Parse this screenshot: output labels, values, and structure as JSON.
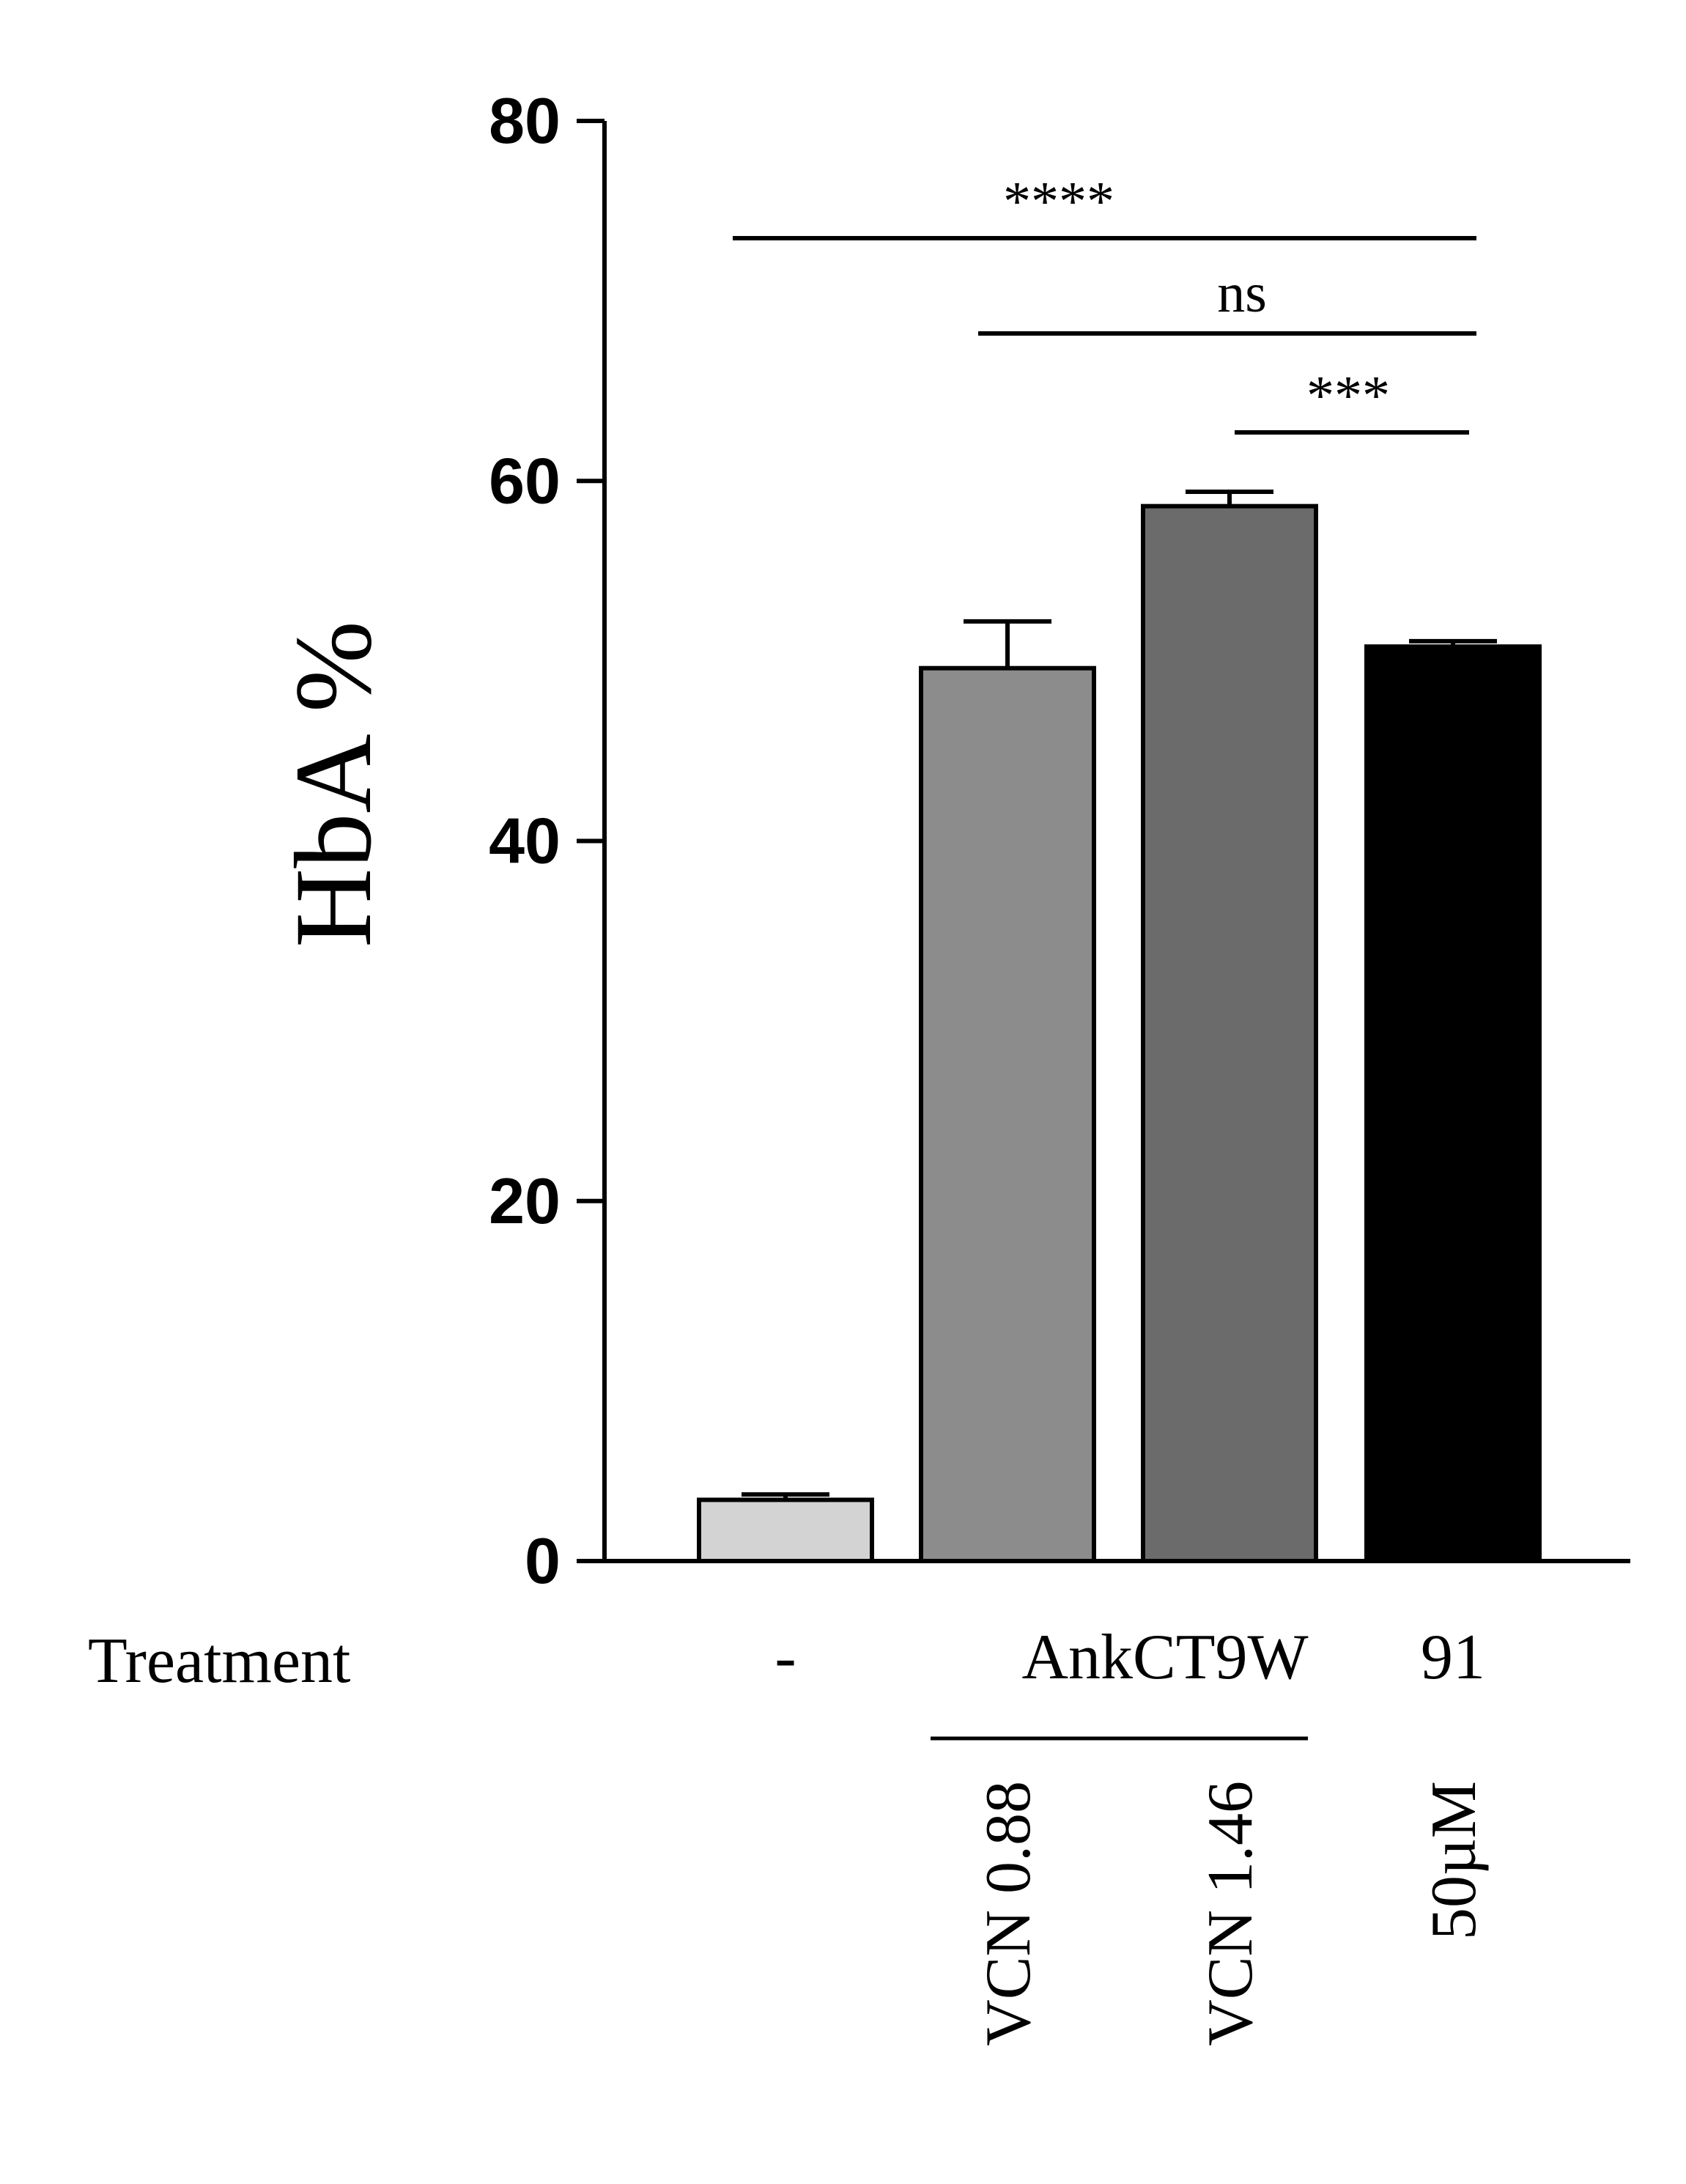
{
  "chart_data": {
    "type": "bar",
    "ylabel": "HbA %",
    "xlabel": "Treatment",
    "ylim": [
      0,
      80
    ],
    "yticks": [
      0,
      20,
      40,
      60,
      80
    ],
    "grid": false,
    "categories": [
      "-",
      "VCN 0.88",
      "VCN 1.46",
      "50µM"
    ],
    "group_labels": {
      "AnkCT9W": [
        "VCN 0.88",
        "VCN 1.46"
      ],
      "91": [
        "50µM"
      ]
    },
    "treatment_labels": [
      "-",
      "AnkCT9W",
      "91"
    ],
    "values": [
      3.4,
      49.6,
      58.6,
      50.8
    ],
    "errors": [
      0.3,
      2.6,
      0.8,
      0.3
    ],
    "colors": [
      "#d3d3d3",
      "#8c8c8c",
      "#6b6b6b",
      "#000000"
    ],
    "significance": [
      {
        "from": 0,
        "to": 3,
        "label": "****"
      },
      {
        "from": 1,
        "to": 3,
        "label": "ns"
      },
      {
        "from": 2,
        "to": 3,
        "label": "***"
      }
    ]
  }
}
